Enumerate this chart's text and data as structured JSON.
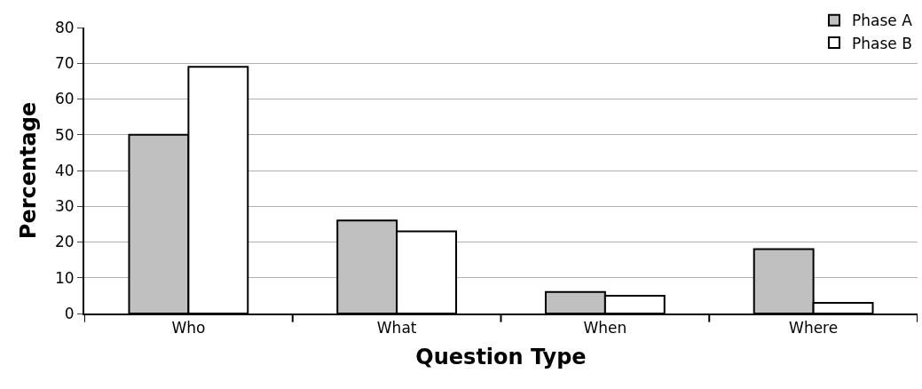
{
  "chart_data": {
    "type": "bar",
    "xlabel": "Question Type",
    "ylabel": "Percentage",
    "categories": [
      "Who",
      "What",
      "When",
      "Where"
    ],
    "series": [
      {
        "name": "Phase A",
        "color": "#c0c0c0",
        "values": [
          50,
          26,
          6,
          18
        ]
      },
      {
        "name": "Phase B",
        "color": "#ffffff",
        "values": [
          69,
          23,
          5,
          3
        ]
      }
    ],
    "ylim": [
      0,
      80
    ],
    "yticks": [
      0,
      10,
      20,
      30,
      40,
      50,
      60,
      70,
      80
    ],
    "grid": "y",
    "legend": "top right"
  }
}
